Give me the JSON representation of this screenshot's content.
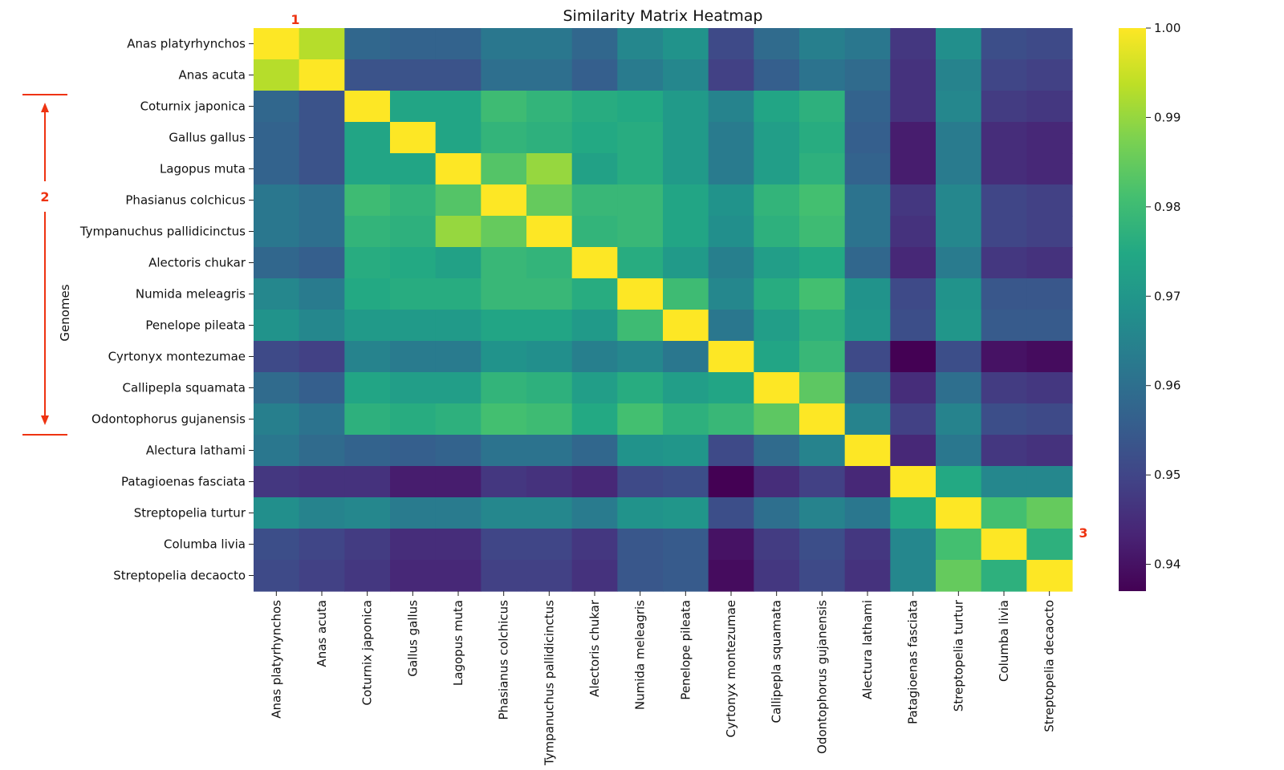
{
  "chart_data": {
    "type": "heatmap",
    "title": "Similarity Matrix Heatmap",
    "ylabel": "Genomes",
    "xlabel": "",
    "labels": [
      "Anas platyrhynchos",
      "Anas acuta",
      "Coturnix japonica",
      "Gallus gallus",
      "Lagopus muta",
      "Phasianus colchicus",
      "Tympanuchus pallidicinctus",
      "Alectoris chukar",
      "Numida meleagris",
      "Penelope pileata",
      "Cyrtonyx montezumae",
      "Callipepla squamata",
      "Odontophorus gujanensis",
      "Alectura lathami",
      "Patagioenas fasciata",
      "Streptopelia turtur",
      "Columba livia",
      "Streptopelia decaocto"
    ],
    "colormap": "viridis",
    "vmin": 0.937,
    "vmax": 1.0,
    "colorbar_ticks": [
      "0.94",
      "0.95",
      "0.96",
      "0.97",
      "0.98",
      "0.99",
      "1.00"
    ],
    "values": [
      [
        1.0,
        0.993,
        0.958,
        0.957,
        0.957,
        0.962,
        0.962,
        0.958,
        0.966,
        0.969,
        0.951,
        0.959,
        0.964,
        0.962,
        0.947,
        0.968,
        0.952,
        0.951
      ],
      [
        0.993,
        1.0,
        0.953,
        0.953,
        0.953,
        0.96,
        0.96,
        0.956,
        0.963,
        0.966,
        0.949,
        0.956,
        0.961,
        0.959,
        0.946,
        0.965,
        0.95,
        0.949
      ],
      [
        0.958,
        0.953,
        1.0,
        0.974,
        0.974,
        0.98,
        0.978,
        0.976,
        0.975,
        0.971,
        0.965,
        0.974,
        0.977,
        0.957,
        0.946,
        0.966,
        0.948,
        0.947
      ],
      [
        0.957,
        0.953,
        0.974,
        1.0,
        0.974,
        0.978,
        0.977,
        0.975,
        0.976,
        0.971,
        0.963,
        0.972,
        0.976,
        0.956,
        0.942,
        0.963,
        0.945,
        0.944
      ],
      [
        0.957,
        0.953,
        0.974,
        0.974,
        1.0,
        0.983,
        0.99,
        0.973,
        0.976,
        0.971,
        0.963,
        0.972,
        0.977,
        0.957,
        0.942,
        0.963,
        0.945,
        0.944
      ],
      [
        0.962,
        0.96,
        0.98,
        0.978,
        0.983,
        1.0,
        0.985,
        0.979,
        0.979,
        0.974,
        0.969,
        0.978,
        0.981,
        0.961,
        0.947,
        0.966,
        0.95,
        0.949
      ],
      [
        0.962,
        0.96,
        0.978,
        0.977,
        0.99,
        0.985,
        1.0,
        0.978,
        0.979,
        0.974,
        0.968,
        0.977,
        0.98,
        0.961,
        0.946,
        0.966,
        0.95,
        0.949
      ],
      [
        0.958,
        0.956,
        0.976,
        0.975,
        0.973,
        0.979,
        0.978,
        1.0,
        0.976,
        0.971,
        0.964,
        0.972,
        0.975,
        0.958,
        0.944,
        0.963,
        0.947,
        0.946
      ],
      [
        0.966,
        0.963,
        0.975,
        0.976,
        0.976,
        0.979,
        0.979,
        0.976,
        1.0,
        0.98,
        0.966,
        0.976,
        0.981,
        0.969,
        0.951,
        0.969,
        0.954,
        0.954
      ],
      [
        0.969,
        0.966,
        0.971,
        0.971,
        0.971,
        0.974,
        0.974,
        0.971,
        0.98,
        1.0,
        0.962,
        0.972,
        0.977,
        0.97,
        0.952,
        0.97,
        0.955,
        0.955
      ],
      [
        0.951,
        0.949,
        0.965,
        0.963,
        0.963,
        0.969,
        0.968,
        0.964,
        0.966,
        0.962,
        1.0,
        0.974,
        0.979,
        0.951,
        0.937,
        0.952,
        0.94,
        0.939
      ],
      [
        0.959,
        0.956,
        0.974,
        0.972,
        0.972,
        0.978,
        0.977,
        0.972,
        0.976,
        0.972,
        0.974,
        1.0,
        0.984,
        0.959,
        0.945,
        0.96,
        0.948,
        0.947
      ],
      [
        0.964,
        0.961,
        0.977,
        0.976,
        0.977,
        0.981,
        0.98,
        0.975,
        0.981,
        0.977,
        0.979,
        0.984,
        1.0,
        0.965,
        0.949,
        0.965,
        0.952,
        0.951
      ],
      [
        0.962,
        0.959,
        0.957,
        0.956,
        0.957,
        0.961,
        0.961,
        0.958,
        0.969,
        0.97,
        0.951,
        0.959,
        0.965,
        1.0,
        0.944,
        0.962,
        0.947,
        0.946
      ],
      [
        0.947,
        0.946,
        0.946,
        0.942,
        0.942,
        0.947,
        0.946,
        0.944,
        0.951,
        0.952,
        0.937,
        0.945,
        0.949,
        0.944,
        1.0,
        0.975,
        0.966,
        0.966
      ],
      [
        0.968,
        0.965,
        0.966,
        0.963,
        0.963,
        0.966,
        0.966,
        0.963,
        0.969,
        0.97,
        0.952,
        0.96,
        0.965,
        0.962,
        0.975,
        1.0,
        0.981,
        0.985
      ],
      [
        0.952,
        0.95,
        0.948,
        0.945,
        0.945,
        0.95,
        0.95,
        0.947,
        0.954,
        0.955,
        0.94,
        0.948,
        0.952,
        0.947,
        0.966,
        0.981,
        1.0,
        0.977
      ],
      [
        0.951,
        0.949,
        0.947,
        0.944,
        0.944,
        0.949,
        0.949,
        0.946,
        0.954,
        0.955,
        0.939,
        0.947,
        0.951,
        0.946,
        0.966,
        0.985,
        0.977,
        1.0
      ]
    ]
  },
  "annotations": {
    "marker_1": "1",
    "marker_2": "2",
    "marker_3": "3",
    "color": "#ee3311"
  }
}
